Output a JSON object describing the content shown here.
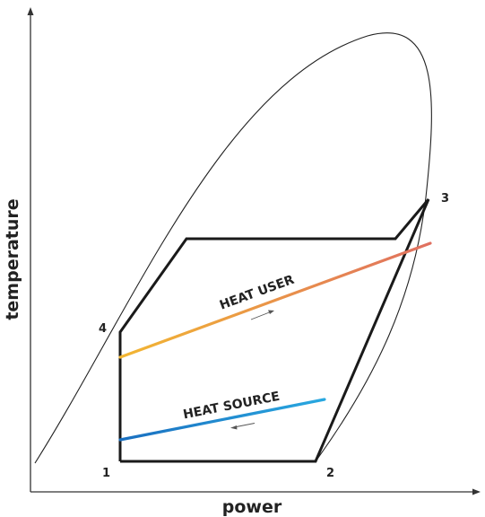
{
  "axes": {
    "x_label": "power",
    "y_label": "temperature"
  },
  "points": {
    "p1": "1",
    "p2": "2",
    "p3": "3",
    "p4": "4"
  },
  "flows": {
    "heat_user": "HEAT USER",
    "heat_source": "HEAT SOURCE"
  },
  "colors": {
    "cycle": "#1a1a1a",
    "saturation_curve": "#222222",
    "heat_user_start": "#f2b632",
    "heat_user_end": "#e07060",
    "heat_source_start": "#1a6fc0",
    "heat_source_end": "#29a8e0",
    "axis": "#333333"
  }
}
